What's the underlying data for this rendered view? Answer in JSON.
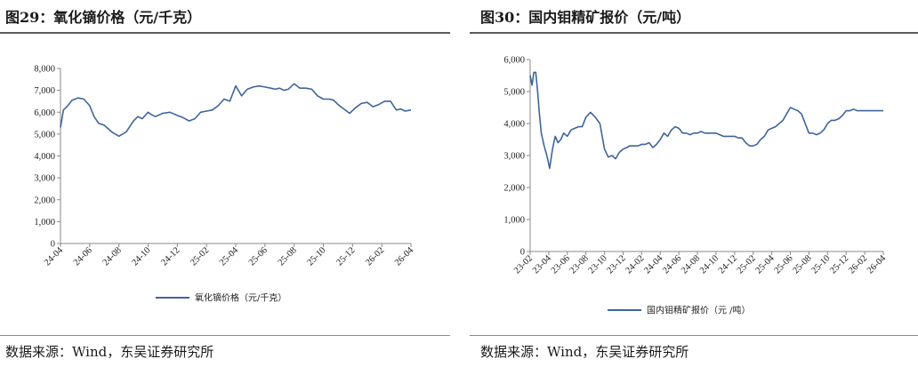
{
  "left_panel": {
    "title": "图29：氧化镝价格（元/千克）",
    "source": "数据来源：Wind，东吴证券研究所"
  },
  "right_panel": {
    "title": "图30：国内钼精矿报价（元/吨）",
    "source": "数据来源：Wind，东吴证券研究所"
  },
  "chart_data": [
    {
      "type": "line",
      "x_ticks": [
        "24-04",
        "24-06",
        "24-08",
        "24-10",
        "24-12",
        "25-02",
        "25-04",
        "25-06",
        "25-08",
        "25-10",
        "25-12",
        "26-02",
        "26-04"
      ],
      "y_ticks": [
        "0",
        "1,000",
        "2,000",
        "3,000",
        "4,000",
        "5,000",
        "6,000",
        "7,000",
        "8,000"
      ],
      "ylim": [
        0,
        8000
      ],
      "xlim": [
        0,
        24
      ],
      "series": [
        {
          "name": "氧化镝价格（元/千克）",
          "color": "#3f6599",
          "x": [
            0,
            0.2,
            0.5,
            0.8,
            1.2,
            1.6,
            2.0,
            2.3,
            2.6,
            3.0,
            3.5,
            4.0,
            4.5,
            5.0,
            5.3,
            5.6,
            6.0,
            6.2,
            6.5,
            7.0,
            7.5,
            8.0,
            8.4,
            8.8,
            9.2,
            9.6,
            10.0,
            10.4,
            10.8,
            11.2,
            11.6,
            12.0,
            12.4,
            12.8,
            13.2,
            13.6,
            14.0,
            14.4,
            14.7,
            15.0,
            15.3,
            15.6,
            16.0,
            16.4,
            16.8,
            17.2,
            17.6,
            18.0,
            18.4,
            18.7,
            19.0,
            19.4,
            19.8,
            20.2,
            20.6,
            21.0,
            21.4,
            21.8,
            22.2,
            22.6,
            23.0,
            23.3,
            23.6,
            24.0
          ],
          "values": [
            5300,
            6100,
            6300,
            6550,
            6650,
            6600,
            6300,
            5800,
            5500,
            5400,
            5100,
            4900,
            5100,
            5600,
            5800,
            5700,
            6000,
            5900,
            5800,
            5950,
            6000,
            5850,
            5750,
            5600,
            5700,
            6000,
            6050,
            6100,
            6300,
            6600,
            6500,
            7200,
            6750,
            7050,
            7150,
            7200,
            7150,
            7100,
            7050,
            7100,
            7000,
            7050,
            7300,
            7100,
            7100,
            7050,
            6750,
            6600,
            6600,
            6550,
            6350,
            6150,
            5950,
            6200,
            6400,
            6450,
            6250,
            6350,
            6500,
            6500,
            6100,
            6150,
            6050,
            6100
          ]
        }
      ]
    },
    {
      "type": "line",
      "x_ticks": [
        "23-02",
        "23-04",
        "23-06",
        "23-08",
        "23-10",
        "23-12",
        "24-02",
        "24-04",
        "24-06",
        "24-08",
        "24-10",
        "24-12",
        "25-02",
        "25-04",
        "25-06",
        "25-08",
        "25-10",
        "25-12",
        "26-02",
        "26-04"
      ],
      "y_ticks": [
        "0",
        "1,000",
        "2,000",
        "3,000",
        "4,000",
        "5,000",
        "6,000"
      ],
      "ylim": [
        0,
        6000
      ],
      "xlim": [
        0,
        38
      ],
      "series": [
        {
          "name": "国内钼精矿报价（元 /吨）",
          "color": "#3f6599",
          "x": [
            0,
            0.2,
            0.4,
            0.6,
            0.8,
            1.0,
            1.2,
            1.5,
            1.8,
            2.1,
            2.4,
            2.7,
            3.0,
            3.3,
            3.6,
            4.0,
            4.4,
            4.8,
            5.2,
            5.6,
            6.0,
            6.5,
            7.0,
            7.5,
            8.0,
            8.4,
            8.8,
            9.2,
            9.6,
            10.0,
            10.4,
            10.7,
            11.0,
            11.3,
            11.6,
            12.0,
            12.4,
            12.8,
            13.2,
            13.6,
            14.0,
            14.4,
            14.8,
            15.2,
            15.6,
            16.0,
            16.4,
            16.8,
            17.2,
            17.6,
            18.0,
            18.4,
            18.8,
            19.2,
            19.6,
            20.0,
            20.4,
            20.8,
            21.2,
            21.6,
            22.0,
            22.4,
            22.8,
            23.2,
            23.6,
            24.0,
            24.4,
            24.8,
            25.2,
            25.6,
            26.0,
            26.4,
            26.8,
            27.2,
            27.6,
            28.0,
            28.4,
            28.8,
            29.2,
            29.6,
            30.0,
            30.4,
            30.8,
            31.2,
            31.6,
            32.0,
            32.4,
            32.8,
            33.2,
            33.6,
            34.0,
            34.4,
            34.8,
            35.2,
            35.6,
            36.0,
            36.4,
            36.8,
            37.2,
            37.6,
            38.0
          ],
          "values": [
            5500,
            5200,
            5600,
            5600,
            5000,
            4300,
            3700,
            3300,
            3000,
            2600,
            3200,
            3600,
            3400,
            3500,
            3700,
            3600,
            3800,
            3850,
            3900,
            3900,
            4200,
            4350,
            4200,
            4000,
            3200,
            2950,
            3000,
            2900,
            3100,
            3200,
            3250,
            3300,
            3300,
            3300,
            3300,
            3350,
            3350,
            3400,
            3250,
            3350,
            3500,
            3700,
            3600,
            3800,
            3900,
            3850,
            3700,
            3700,
            3650,
            3700,
            3700,
            3750,
            3700,
            3700,
            3700,
            3700,
            3650,
            3600,
            3600,
            3600,
            3600,
            3550,
            3550,
            3400,
            3300,
            3300,
            3350,
            3500,
            3600,
            3800,
            3850,
            3900,
            4000,
            4100,
            4300,
            4500,
            4450,
            4400,
            4300,
            4000,
            3700,
            3700,
            3650,
            3700,
            3800,
            4000,
            4100,
            4100,
            4150,
            4250,
            4400,
            4400,
            4450,
            4400,
            4400,
            4400,
            4400,
            4400,
            4400,
            4400,
            4400
          ]
        }
      ]
    }
  ]
}
